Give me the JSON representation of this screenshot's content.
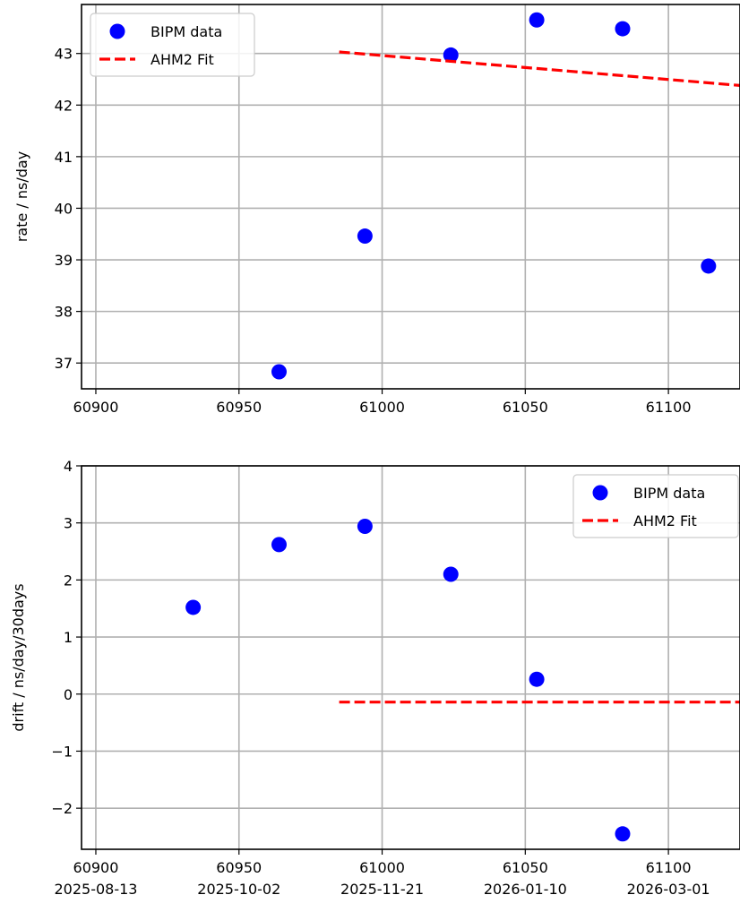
{
  "chart_data": [
    {
      "type": "scatter",
      "xlabel": "",
      "ylabel": "rate / ns/day",
      "xlim": [
        60895,
        61125
      ],
      "ylim": [
        36.5,
        43.95
      ],
      "xticks": [
        60900,
        60950,
        61000,
        61050,
        61100
      ],
      "xtick_labels": [
        "60900",
        "60950",
        "61000",
        "61050",
        "61100"
      ],
      "yticks": [
        37,
        38,
        39,
        40,
        41,
        42,
        43
      ],
      "ytick_labels": [
        "37",
        "38",
        "39",
        "40",
        "41",
        "42",
        "43"
      ],
      "grid": true,
      "legend_position": "upper-left",
      "series": [
        {
          "name": "BIPM data",
          "kind": "points",
          "color": "#0000ff",
          "x": [
            60964,
            60994,
            61024,
            61054,
            61084,
            61114
          ],
          "y": [
            36.83,
            39.46,
            42.97,
            43.65,
            43.48,
            38.88
          ]
        },
        {
          "name": "AHM2 Fit",
          "kind": "dashed-line",
          "color": "#ff0000",
          "x": [
            60985,
            61125
          ],
          "y": [
            43.03,
            42.38
          ]
        }
      ]
    },
    {
      "type": "scatter",
      "xlabel": "",
      "ylabel": "drift / ns/day/30days",
      "xlim": [
        60895,
        61125
      ],
      "ylim": [
        -2.72,
        4.0
      ],
      "xticks": [
        60900,
        60950,
        61000,
        61050,
        61100
      ],
      "xtick_labels": [
        "60900\n2025-08-13",
        "60950\n2025-10-02",
        "61000\n2025-11-21",
        "61050\n2026-01-10",
        "61100\n2026-03-01"
      ],
      "yticks": [
        -2,
        -1,
        0,
        1,
        2,
        3,
        4
      ],
      "ytick_labels": [
        "−2",
        "−1",
        "0",
        "1",
        "2",
        "3",
        "4"
      ],
      "grid": true,
      "legend_position": "upper-right",
      "series": [
        {
          "name": "BIPM data",
          "kind": "points",
          "color": "#0000ff",
          "x": [
            60934,
            60964,
            60994,
            61024,
            61054,
            61084
          ],
          "y": [
            1.52,
            2.62,
            2.94,
            2.1,
            0.26,
            -2.45
          ]
        },
        {
          "name": "AHM2 Fit",
          "kind": "dashed-line",
          "color": "#ff0000",
          "x": [
            60985,
            61125
          ],
          "y": [
            -0.14,
            -0.14
          ]
        }
      ]
    }
  ]
}
